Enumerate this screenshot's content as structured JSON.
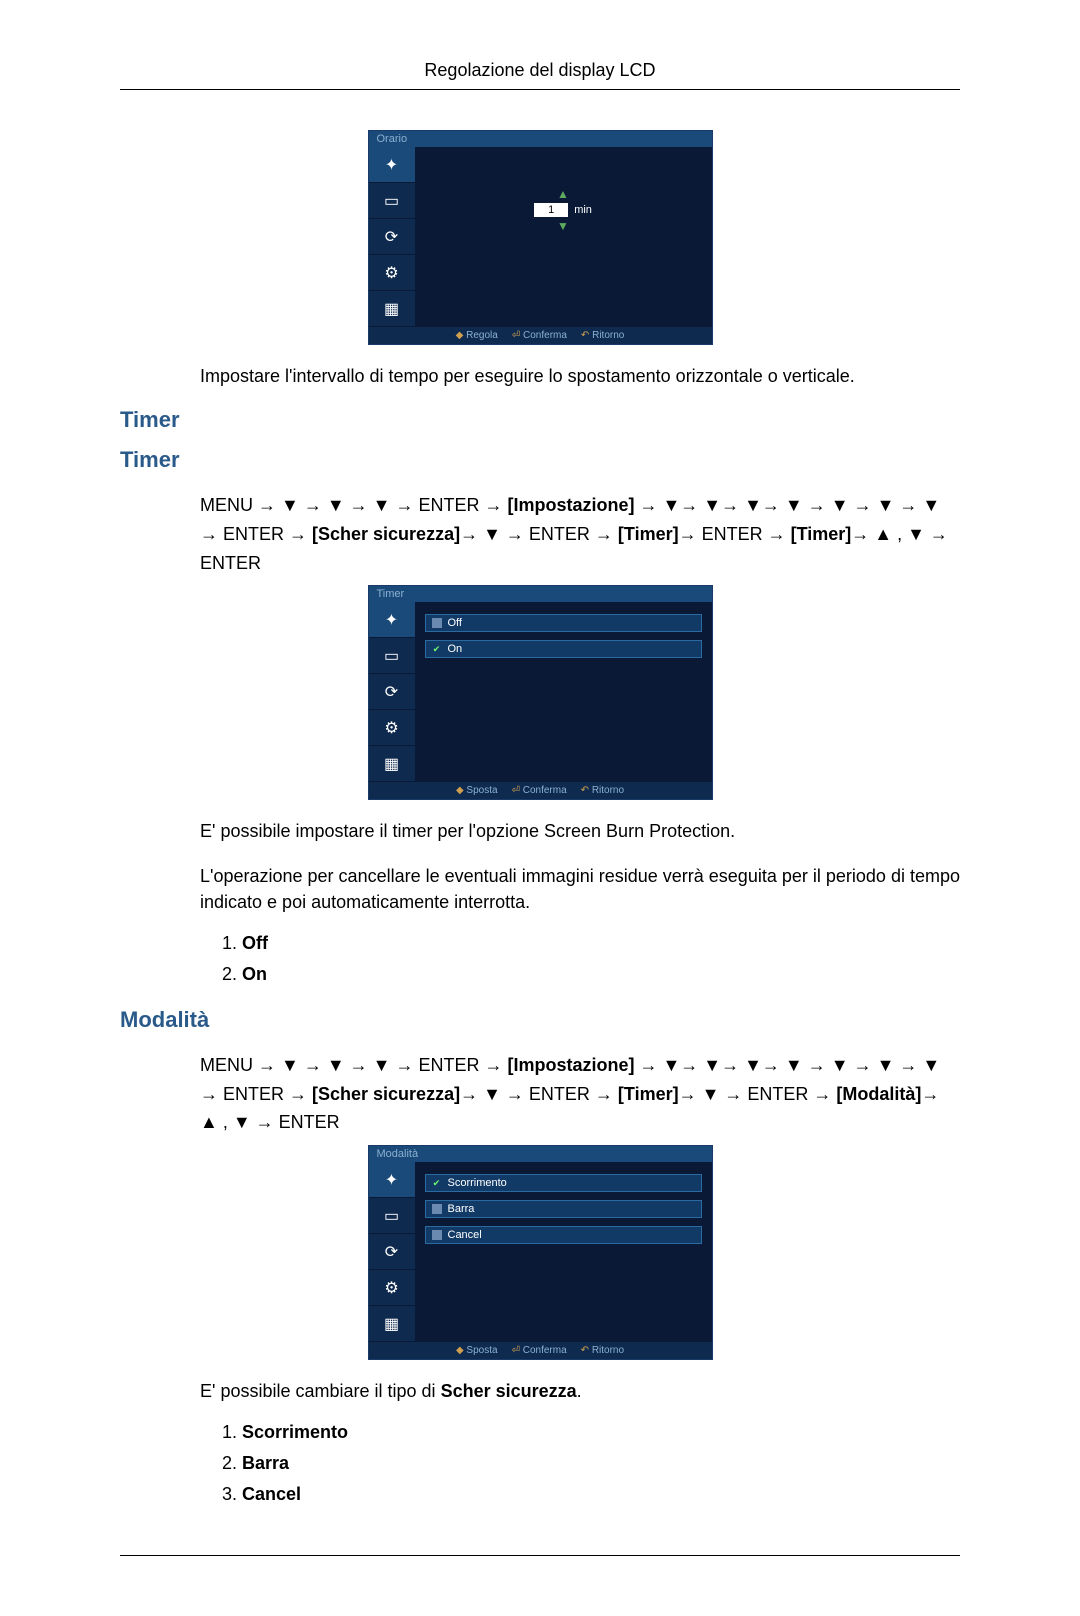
{
  "header": {
    "title": "Regolazione del display LCD"
  },
  "osd1": {
    "title": "Orario",
    "icons": [
      "✦",
      "▭",
      "⟳",
      "⚙",
      "▦"
    ],
    "value": "1",
    "unit": "min",
    "footer": {
      "a": "Regola",
      "b": "Conferma",
      "c": "Ritorno"
    }
  },
  "text1": "Impostare l'intervallo di tempo per eseguire lo spostamento orizzontale o verticale.",
  "h_timer1": "Timer",
  "h_timer2": "Timer",
  "nav_timer": {
    "pre": "MENU → ▼ → ▼ → ▼ → ENTER → ",
    "imp": "[Impostazione]",
    "mid1": " → ▼→ ▼→ ▼→ ▼ → ▼ → ▼ → ▼ → ENTER → ",
    "scher": "[Scher sicurezza]",
    "mid2": "→ ▼ → ENTER → ",
    "timer1": "[Timer]",
    "mid3": "→ ENTER → ",
    "timer2": "[Timer]",
    "mid4": "→ ▲ , ▼ → ENTER"
  },
  "osd2": {
    "title": "Timer",
    "icons": [
      "✦",
      "▭",
      "⟳",
      "⚙",
      "▦"
    ],
    "opts": [
      {
        "label": "Off",
        "on": false
      },
      {
        "label": "On",
        "on": true
      }
    ],
    "footer": {
      "a": "Sposta",
      "b": "Conferma",
      "c": "Ritorno"
    }
  },
  "text2a": "E' possibile impostare il timer per l'opzione Screen Burn Protection.",
  "text2b": "L'operazione per cancellare le eventuali immagini residue verrà eseguita per il periodo di tempo indicato e poi automaticamente interrotta.",
  "list_timer": [
    "Off",
    "On"
  ],
  "h_modalita": "Modalità",
  "nav_modalita": {
    "pre": "MENU → ▼ → ▼ → ▼ → ENTER → ",
    "imp": "[Impostazione]",
    "mid1": " → ▼→ ▼→ ▼→ ▼ → ▼ → ▼ → ▼ → ENTER → ",
    "scher": "[Scher sicurezza]",
    "mid2": "→ ▼ → ENTER → ",
    "timer": "[Timer]",
    "mid3": "→ ▼ → ENTER → ",
    "mod": "[Modalità]",
    "mid4": "→ ▲ , ▼ → ENTER"
  },
  "osd3": {
    "title": "Modalità",
    "icons": [
      "✦",
      "▭",
      "⟳",
      "⚙",
      "▦"
    ],
    "opts": [
      {
        "label": "Scorrimento",
        "on": true
      },
      {
        "label": "Barra",
        "on": false
      },
      {
        "label": "Cancel",
        "on": false
      }
    ],
    "footer": {
      "a": "Sposta",
      "b": "Conferma",
      "c": "Ritorno"
    }
  },
  "text3_pre": "E' possibile cambiare il tipo di ",
  "text3_bold": "Scher sicurezza",
  "text3_post": ".",
  "list_modalita": [
    "Scorrimento",
    "Barra",
    "Cancel"
  ]
}
